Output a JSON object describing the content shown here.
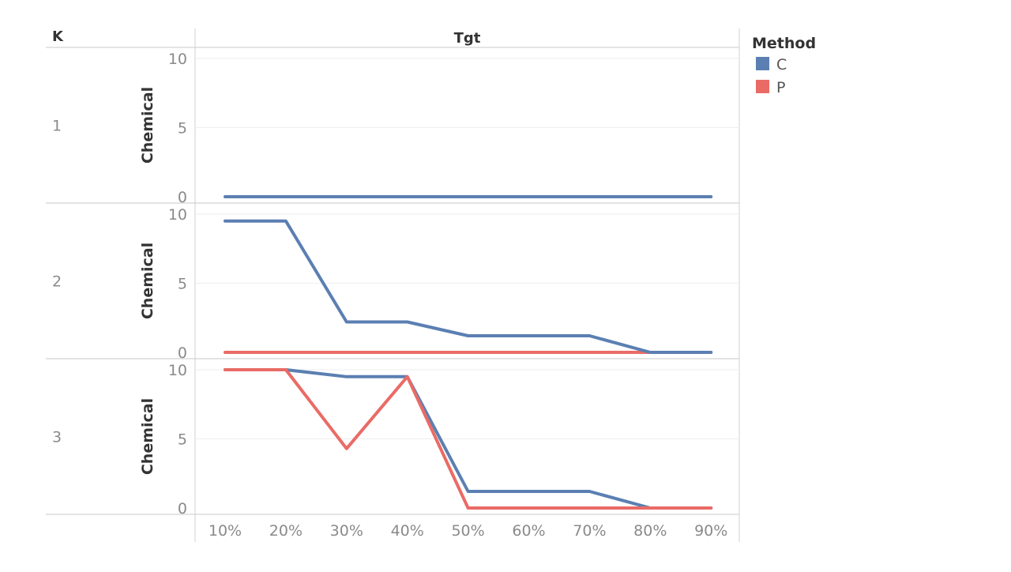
{
  "chart_data": {
    "type": "line",
    "column_header": "Tgt",
    "row_header": "K",
    "x_categories": [
      "10%",
      "20%",
      "30%",
      "40%",
      "50%",
      "60%",
      "70%",
      "80%",
      "90%"
    ],
    "ylim": [
      0,
      10
    ],
    "yticks": [
      0,
      5,
      10
    ],
    "legend": {
      "title": "Method",
      "placement": "top-right",
      "items": [
        {
          "name": "C",
          "color": "#5b7fb2"
        },
        {
          "name": "P",
          "color": "#ea6b66"
        }
      ]
    },
    "panels": [
      {
        "row_label": "1",
        "ylabel": "Chemical",
        "series": [
          {
            "name": "C",
            "values": [
              0,
              0,
              0,
              0,
              0,
              0,
              0,
              0,
              0
            ]
          }
        ]
      },
      {
        "row_label": "2",
        "ylabel": "Chemical",
        "series": [
          {
            "name": "P",
            "values": [
              0,
              0,
              0,
              0,
              0,
              0,
              0,
              0,
              0
            ]
          },
          {
            "name": "C",
            "values": [
              9.5,
              9.5,
              2.2,
              2.2,
              1.2,
              1.2,
              1.2,
              0,
              0
            ]
          }
        ]
      },
      {
        "row_label": "3",
        "ylabel": "Chemical",
        "series": [
          {
            "name": "C",
            "values": [
              10,
              10,
              9.5,
              9.5,
              1.2,
              1.2,
              1.2,
              0,
              0
            ]
          },
          {
            "name": "P",
            "values": [
              10,
              10,
              4.3,
              9.5,
              0,
              0,
              0,
              0,
              0
            ]
          }
        ]
      }
    ],
    "grid": true
  }
}
